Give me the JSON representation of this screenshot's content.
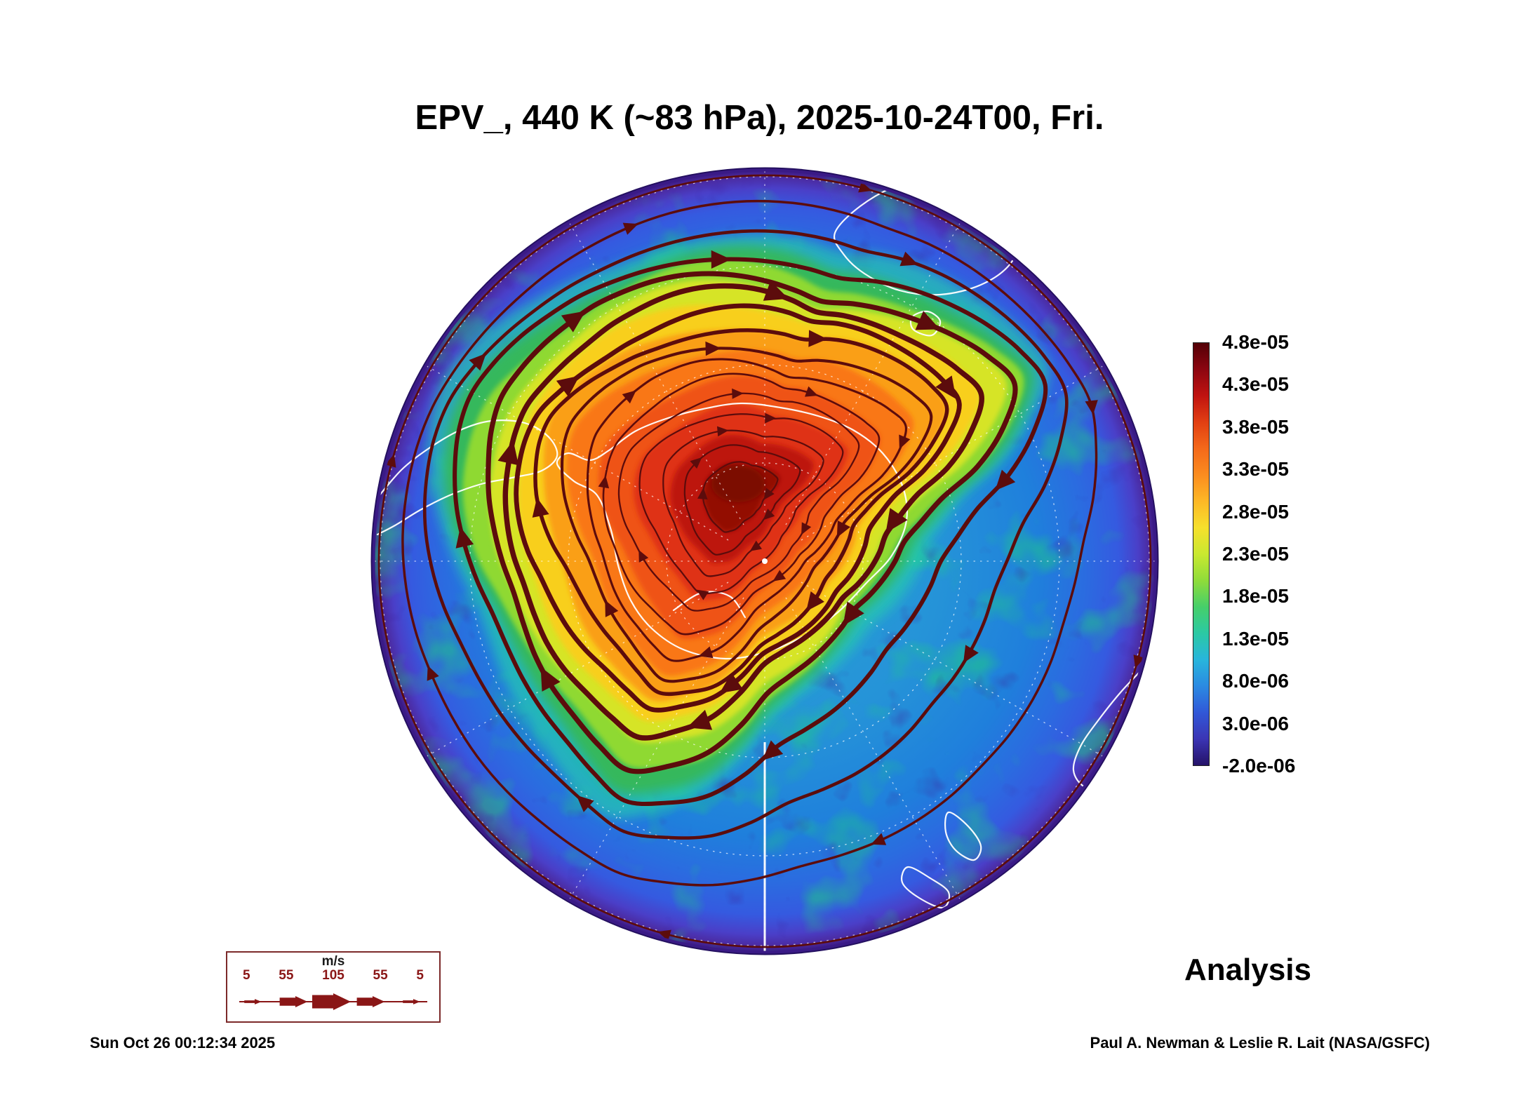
{
  "title": "EPV_, 440 K (~83 hPa), 2025-10-24T00, Fri.",
  "colorbar": {
    "labels": [
      "4.8e-05",
      "4.3e-05",
      "3.8e-05",
      "3.3e-05",
      "2.8e-05",
      "2.3e-05",
      "1.8e-05",
      "1.3e-05",
      "8.0e-06",
      "3.0e-06",
      "-2.0e-06"
    ]
  },
  "wind_legend": {
    "units": "m/s",
    "values": [
      "5",
      "55",
      "105",
      "55",
      "5"
    ]
  },
  "analysis_label": "Analysis",
  "timestamp": "Sun Oct 26 00:12:34 2025",
  "credit": "Paul A. Newman & Leslie R. Lait (NASA/GSFC)",
  "colors": {
    "streamline": "#5c0c0c",
    "coastline": "#ffffff",
    "legend_red": "#8a1616",
    "rim_purple": "#3a1a86"
  },
  "chart_data": {
    "type": "heatmap",
    "title": "EPV_, 440 K (~83 hPa), 2025-10-24T00, Fri.",
    "field": "EPV (Ertel potential vorticity)",
    "level": "440 K (~83 hPa)",
    "valid_time": "2025-10-24T00 (Fri.)",
    "projection": "south polar stereographic, Antarctica centered",
    "colorbar_tick_labels": [
      "4.8e-05",
      "4.3e-05",
      "3.8e-05",
      "3.3e-05",
      "2.8e-05",
      "2.3e-05",
      "1.8e-05",
      "1.3e-05",
      "8.0e-06",
      "3.0e-06",
      "-2.0e-06"
    ],
    "colorbar_ticks": [
      4.8e-05,
      4.3e-05,
      3.8e-05,
      3.3e-05,
      2.8e-05,
      2.3e-05,
      1.8e-05,
      1.3e-05,
      8e-06,
      3e-06,
      -2e-06
    ],
    "colorbar_range": [
      -2e-06,
      4.8e-05
    ],
    "colormap": [
      "#530006",
      "#8c0610",
      "#c01310",
      "#e23f12",
      "#f4691a",
      "#fb8c1f",
      "#fdb826",
      "#f6e02c",
      "#c9e830",
      "#8fdc3a",
      "#46cf6a",
      "#2bc9a4",
      "#28b5dc",
      "#2b8ae2",
      "#3158d8",
      "#3b35b4",
      "#251268"
    ],
    "overlay": {
      "type": "streamlines",
      "variable": "horizontal wind",
      "units": "m/s",
      "speed_legend": [
        5,
        55,
        105,
        55,
        5
      ],
      "color": "#5c0c0c"
    },
    "features": "polar vortex high-EPV core (orange/red, ~3e-05 to 4.8e-05) over Antarctica surrounded by low-EPV blues (~3e-06 to 1.3e-05); strong jet streamlines along vortex edge",
    "annotations": [
      "Analysis"
    ],
    "legend_position": "right colorbar; wind-speed scale box bottom-left",
    "grid": "dashed white latitude/longitude graticule"
  }
}
